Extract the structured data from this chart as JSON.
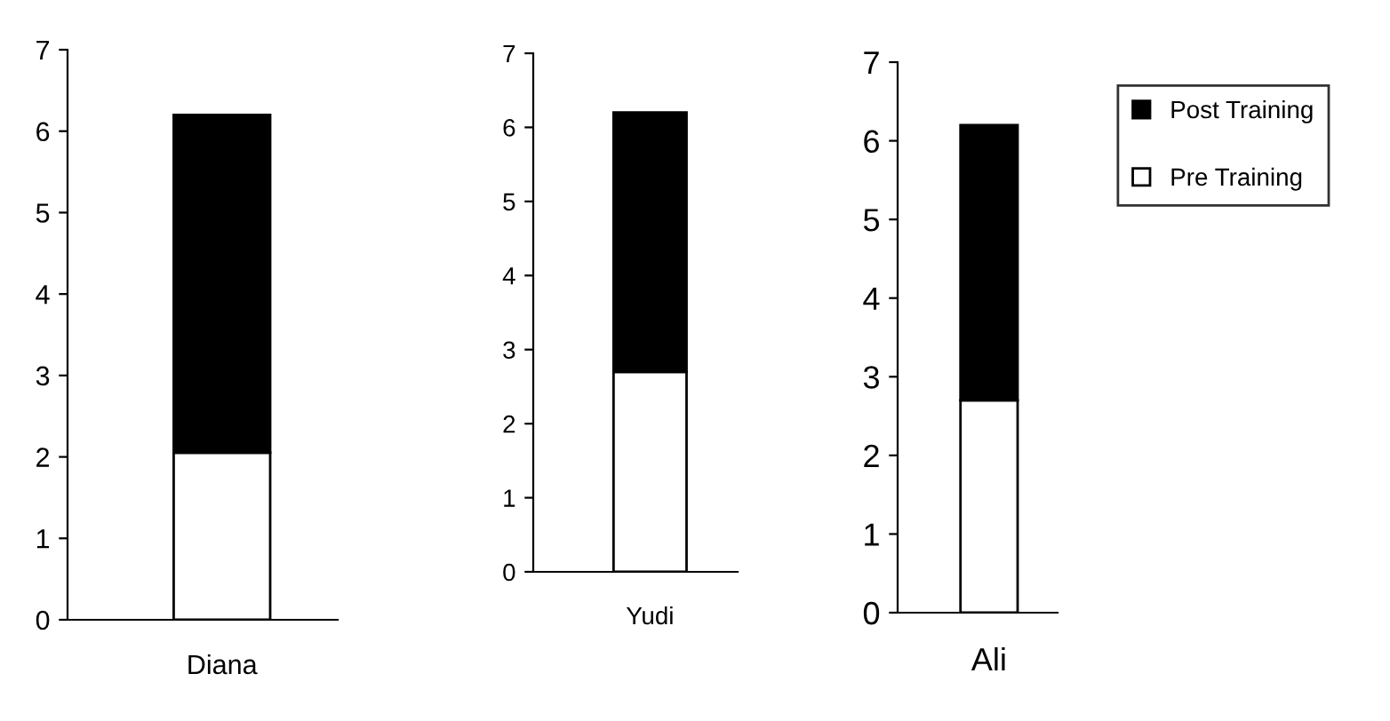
{
  "chart_data": [
    {
      "type": "bar",
      "stacked": true,
      "categories": [
        "Diana"
      ],
      "series": [
        {
          "color": "#ffffff",
          "values": [
            2.05
          ]
        },
        {
          "color": "#000000",
          "values": [
            4.15
          ]
        }
      ],
      "ylim": [
        0,
        7
      ],
      "yticks": [
        0,
        1,
        2,
        3,
        4,
        5,
        6,
        7
      ],
      "grid": false,
      "legend": false
    },
    {
      "type": "bar",
      "stacked": true,
      "categories": [
        "Yudi"
      ],
      "series": [
        {
          "color": "#ffffff",
          "values": [
            2.7
          ]
        },
        {
          "color": "#000000",
          "values": [
            3.5
          ]
        }
      ],
      "ylim": [
        0,
        7
      ],
      "yticks": [
        0,
        1,
        2,
        3,
        4,
        5,
        6,
        7
      ],
      "grid": false,
      "legend": false
    },
    {
      "type": "bar",
      "stacked": true,
      "categories": [
        "Ali"
      ],
      "series": [
        {
          "name": "Pre Training",
          "color": "#ffffff",
          "values": [
            2.7
          ]
        },
        {
          "name": "Post Training",
          "color": "#000000",
          "values": [
            3.5
          ]
        }
      ],
      "ylim": [
        0,
        7
      ],
      "yticks": [
        0,
        1,
        2,
        3,
        4,
        5,
        6,
        7
      ],
      "grid": false,
      "legend": "right"
    }
  ]
}
